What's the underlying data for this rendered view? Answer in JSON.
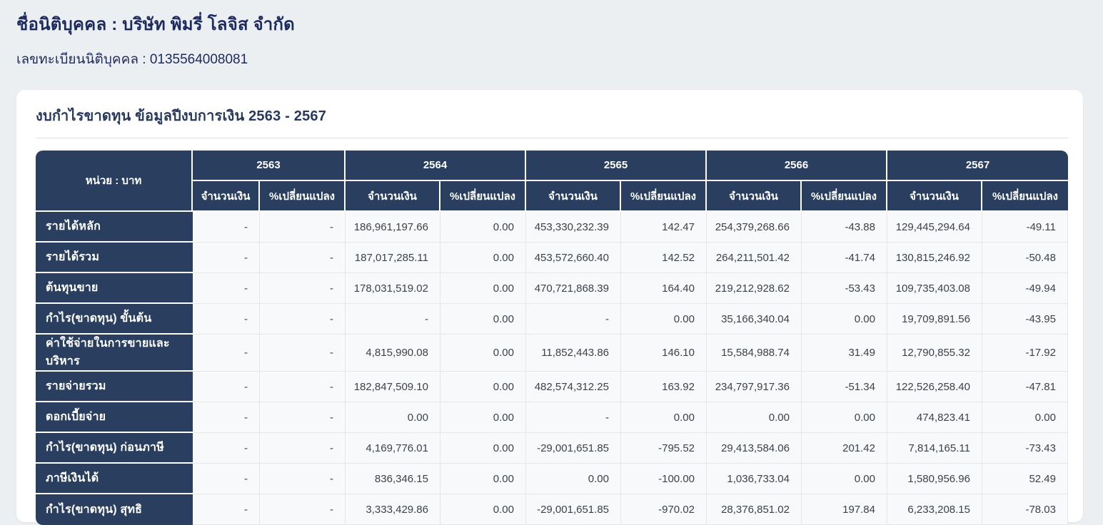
{
  "header": {
    "company_line": "ชื่อนิติบุคคล : บริษัท พิมรี่ โลจิส จำกัด",
    "registration_line": "เลขทะเบียนนิติบุคคล : 0135564008081"
  },
  "card": {
    "title": "งบกำไรขาดทุน ข้อมูลปีงบการเงิน 2563 - 2567"
  },
  "table": {
    "unit_header": "หน่วย : บาท",
    "amount_header": "จำนวนเงิน",
    "change_header": "%เปลี่ยนแปลง",
    "years": [
      "2563",
      "2564",
      "2565",
      "2566",
      "2567"
    ],
    "rows": [
      {
        "label": "รายได้หลัก",
        "values": [
          "-",
          "-",
          "186,961,197.66",
          "0.00",
          "453,330,232.39",
          "142.47",
          "254,379,268.66",
          "-43.88",
          "129,445,294.64",
          "-49.11"
        ]
      },
      {
        "label": "รายได้รวม",
        "values": [
          "-",
          "-",
          "187,017,285.11",
          "0.00",
          "453,572,660.40",
          "142.52",
          "264,211,501.42",
          "-41.74",
          "130,815,246.92",
          "-50.48"
        ]
      },
      {
        "label": "ต้นทุนขาย",
        "values": [
          "-",
          "-",
          "178,031,519.02",
          "0.00",
          "470,721,868.39",
          "164.40",
          "219,212,928.62",
          "-53.43",
          "109,735,403.08",
          "-49.94"
        ]
      },
      {
        "label": "กำไร(ขาดทุน) ขั้นต้น",
        "values": [
          "-",
          "-",
          "-",
          "0.00",
          "-",
          "0.00",
          "35,166,340.04",
          "0.00",
          "19,709,891.56",
          "-43.95"
        ]
      },
      {
        "label": "ค่าใช้จ่ายในการขายและบริหาร",
        "values": [
          "-",
          "-",
          "4,815,990.08",
          "0.00",
          "11,852,443.86",
          "146.10",
          "15,584,988.74",
          "31.49",
          "12,790,855.32",
          "-17.92"
        ]
      },
      {
        "label": "รายจ่ายรวม",
        "values": [
          "-",
          "-",
          "182,847,509.10",
          "0.00",
          "482,574,312.25",
          "163.92",
          "234,797,917.36",
          "-51.34",
          "122,526,258.40",
          "-47.81"
        ]
      },
      {
        "label": "ดอกเบี้ยจ่าย",
        "values": [
          "-",
          "-",
          "0.00",
          "0.00",
          "-",
          "0.00",
          "0.00",
          "0.00",
          "474,823.41",
          "0.00"
        ]
      },
      {
        "label": "กำไร(ขาดทุน) ก่อนภาษี",
        "values": [
          "-",
          "-",
          "4,169,776.01",
          "0.00",
          "-29,001,651.85",
          "-795.52",
          "29,413,584.06",
          "201.42",
          "7,814,165.11",
          "-73.43"
        ]
      },
      {
        "label": "ภาษีเงินได้",
        "values": [
          "-",
          "-",
          "836,346.15",
          "0.00",
          "0.00",
          "-100.00",
          "1,036,733.04",
          "0.00",
          "1,580,956.96",
          "52.49"
        ]
      },
      {
        "label": "กำไร(ขาดทุน) สุทธิ",
        "values": [
          "-",
          "-",
          "3,333,429.86",
          "0.00",
          "-29,001,651.85",
          "-970.02",
          "28,376,851.02",
          "197.84",
          "6,233,208.15",
          "-78.03"
        ]
      }
    ]
  },
  "colors": {
    "page_background": "#eceff1",
    "card_background": "#ffffff",
    "header_navy": "#2a3f60",
    "heading_text": "#1c2a5e",
    "cell_background": "#f8f9fb",
    "cell_border": "#e4e7ea"
  }
}
